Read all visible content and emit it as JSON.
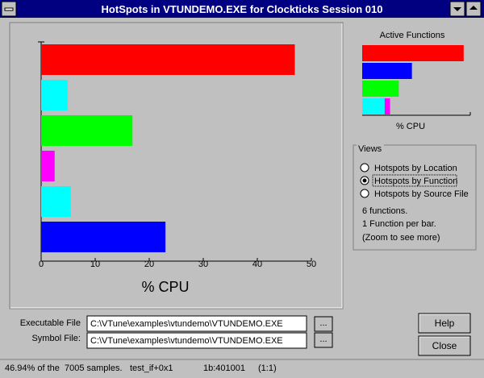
{
  "window": {
    "title": "HotSpots in VTUNDEMO.EXE for Clockticks Session 010"
  },
  "chart_data": {
    "type": "bar",
    "orientation": "horizontal",
    "xlabel": "% CPU",
    "values": [
      46.94,
      4.9,
      16.9,
      2.5,
      5.5,
      23.0
    ],
    "colors": [
      "#ff0000",
      "#00ffff",
      "#00ff00",
      "#ff00ff",
      "#00ffff",
      "#0000ff"
    ],
    "xlim": [
      0,
      50
    ],
    "xticks": [
      0,
      10,
      20,
      30,
      40,
      50
    ]
  },
  "overview": {
    "title": "Active Functions",
    "xlabel": "% CPU"
  },
  "views": {
    "title": "Views",
    "options": [
      "Hotspots by Location",
      "Hotspots by Function",
      "Hotspots by Source File"
    ],
    "selected": 1,
    "notes": [
      "6 functions.",
      "1 Function per bar.",
      "(Zoom to see more)"
    ]
  },
  "files": {
    "executable_label": "Executable File",
    "executable": "C:\\VTune\\examples\\vtundemo\\VTUNDEMO.EXE",
    "symbol_label": "Symbol File:",
    "symbol": "C:\\VTune\\examples\\vtundemo\\VTUNDEMO.EXE",
    "browse": "..."
  },
  "buttons": [
    "Help",
    "Close"
  ],
  "status": [
    "46.94% of the  7005 samples.",
    "test_if+0x1",
    "1b:401001",
    "(1:1)"
  ]
}
